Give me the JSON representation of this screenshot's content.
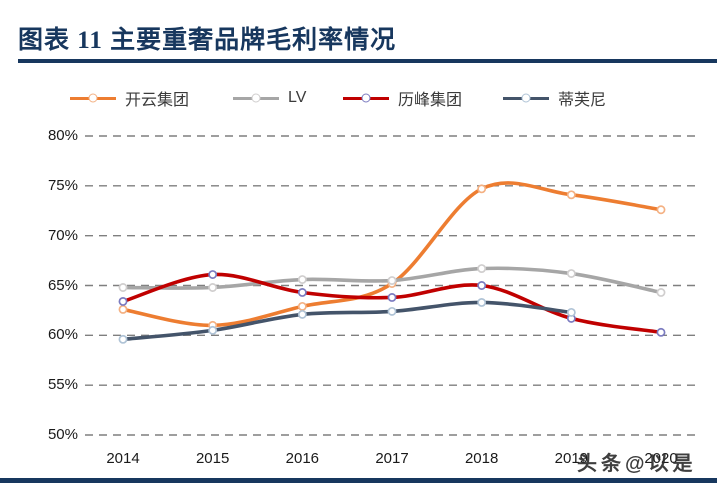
{
  "page": {
    "title": "图表 11  主要重奢品牌毛利率情况",
    "watermark": "头条@以是"
  },
  "chart_data": {
    "type": "line",
    "title": "主要重奢品牌毛利率情况",
    "categories": [
      "2014",
      "2015",
      "2016",
      "2017",
      "2018",
      "2019",
      "2020"
    ],
    "series": [
      {
        "id": "kering",
        "name": "开云集团",
        "color": "#ED7D31",
        "marker_color": "#F4B183",
        "values": [
          62.6,
          61.0,
          62.9,
          65.2,
          74.7,
          74.1,
          72.6
        ]
      },
      {
        "id": "lv",
        "name": "LV",
        "color": "#A6A6A6",
        "marker_color": "#D0CECE",
        "values": [
          64.8,
          64.8,
          65.6,
          65.5,
          66.7,
          66.2,
          64.3
        ]
      },
      {
        "id": "richemont",
        "name": "历峰集团",
        "color": "#C00000",
        "marker_color": "#7B7BC0",
        "values": [
          63.4,
          66.1,
          64.3,
          63.8,
          65.0,
          61.7,
          60.3
        ]
      },
      {
        "id": "tiffany",
        "name": "蒂芙尼",
        "color": "#44546A",
        "marker_color": "#AFC3D6",
        "values": [
          59.6,
          60.5,
          62.1,
          62.4,
          63.3,
          62.3,
          null
        ]
      }
    ],
    "ylim": [
      50,
      80
    ],
    "yticks": [
      "80%",
      "75%",
      "70%",
      "65%",
      "60%",
      "55%",
      "50%"
    ],
    "ytick_values": [
      80,
      75,
      70,
      65,
      60,
      55,
      50
    ],
    "grid": "horizontal-dashed",
    "gridline_color": "#7F7F7F",
    "legend_position": "top",
    "line_style": "smooth",
    "accent_color": "#17375E"
  }
}
